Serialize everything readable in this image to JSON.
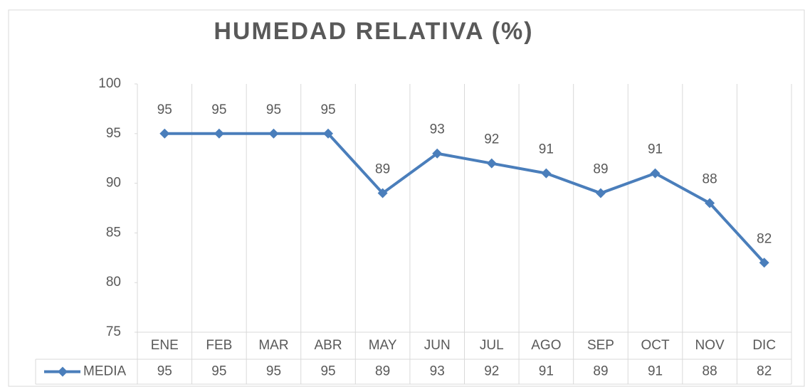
{
  "chart_data": {
    "type": "line",
    "title": "HUMEDAD RELATIVA (%)",
    "categories": [
      "ENE",
      "FEB",
      "MAR",
      "ABR",
      "MAY",
      "JUN",
      "JUL",
      "AGO",
      "SEP",
      "OCT",
      "NOV",
      "DIC"
    ],
    "series": [
      {
        "name": "MEDIA",
        "color": "#4a7ebb",
        "values": [
          95,
          95,
          95,
          95,
          89,
          93,
          92,
          91,
          89,
          91,
          88,
          82
        ]
      }
    ],
    "ylim": [
      75,
      100
    ],
    "yticks": [
      75,
      80,
      85,
      90,
      95,
      100
    ],
    "grid": "x",
    "data_labels": true,
    "data_table": true
  }
}
